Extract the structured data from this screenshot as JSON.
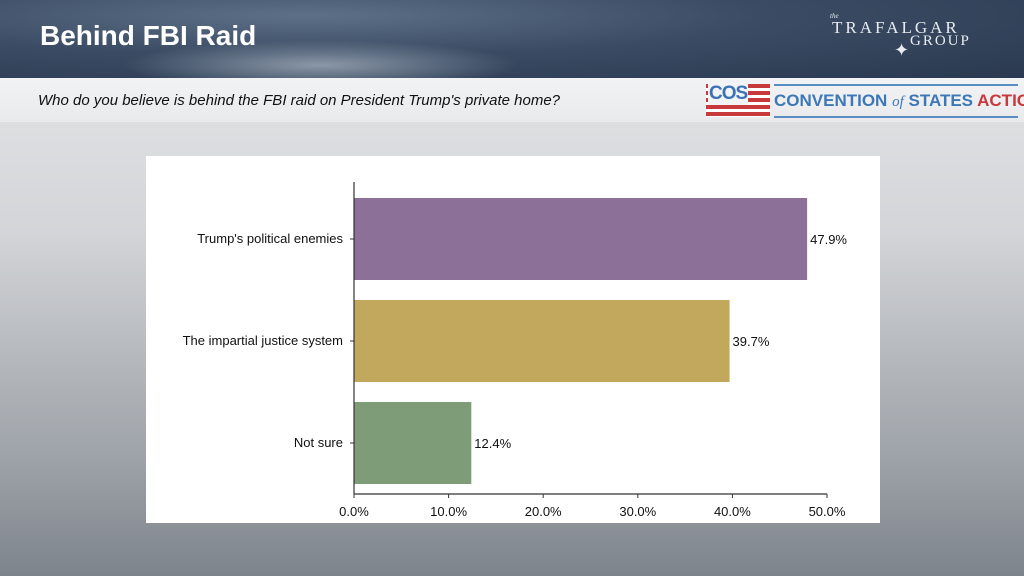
{
  "header": {
    "title": "Behind FBI Raid",
    "logo_text": {
      "the": "the",
      "line1": "TRAFALGAR",
      "line2": "GROUP"
    }
  },
  "question": "Who do you believe is behind the FBI raid on President Trump's private home?",
  "cos_logo": {
    "abbr": "COS",
    "name_part1": "CONVENTION",
    "name_of": "of",
    "name_part2": "STATES",
    "name_part3": "ACTION"
  },
  "chart_data": {
    "type": "bar",
    "orientation": "horizontal",
    "categories": [
      "Trump's political enemies",
      "The impartial justice system",
      "Not sure"
    ],
    "values": [
      47.9,
      39.7,
      12.4
    ],
    "data_labels": [
      "47.9%",
      "39.7%",
      "12.4%"
    ],
    "colors": [
      "#8c7098",
      "#c1a85c",
      "#7e9c78"
    ],
    "xlim": [
      0,
      50
    ],
    "xticks": [
      0,
      10,
      20,
      30,
      40,
      50
    ],
    "xtick_labels": [
      "0.0%",
      "10.0%",
      "20.0%",
      "30.0%",
      "40.0%",
      "50.0%"
    ],
    "title": "",
    "xlabel": "",
    "ylabel": "",
    "grid": false
  }
}
